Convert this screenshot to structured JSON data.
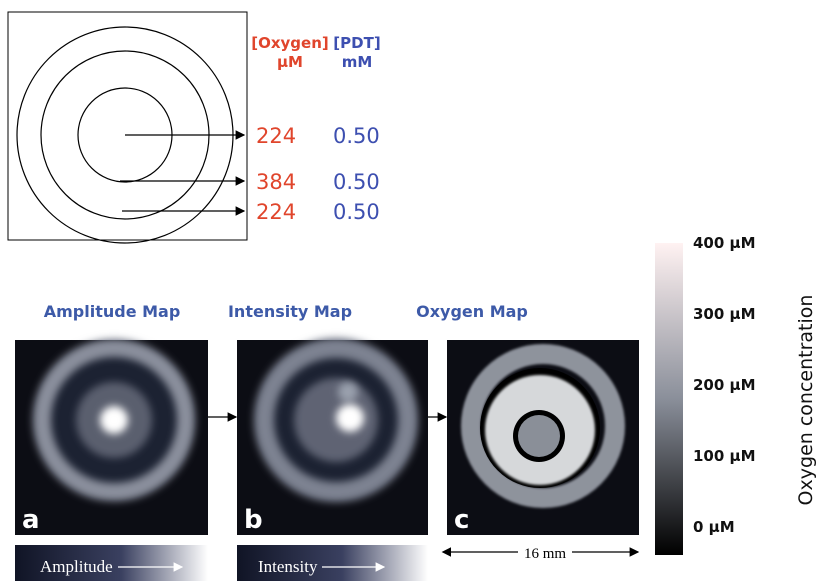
{
  "legend_table": {
    "headers": [
      {
        "name": "[Oxygen]",
        "unit": "µM"
      },
      {
        "name": "[PDT]",
        "unit": "mM"
      }
    ],
    "rows": [
      [
        "224",
        "0.50"
      ],
      [
        "384",
        "0.50"
      ],
      [
        "224",
        "0.50"
      ]
    ]
  },
  "panels": [
    {
      "title": "Amplitude Map",
      "letter": "a",
      "scale_label": "Amplitude"
    },
    {
      "title": "Intensity Map",
      "letter": "b",
      "scale_label": "Intensity"
    },
    {
      "title": "Oxygen Map",
      "letter": "c",
      "scale_label": "16 mm"
    }
  ],
  "colorbar": {
    "title": "Oxygen concentration",
    "labels": [
      "400 µM",
      "300 µM",
      "200 µM",
      "100 µM",
      "0 µM"
    ]
  }
}
